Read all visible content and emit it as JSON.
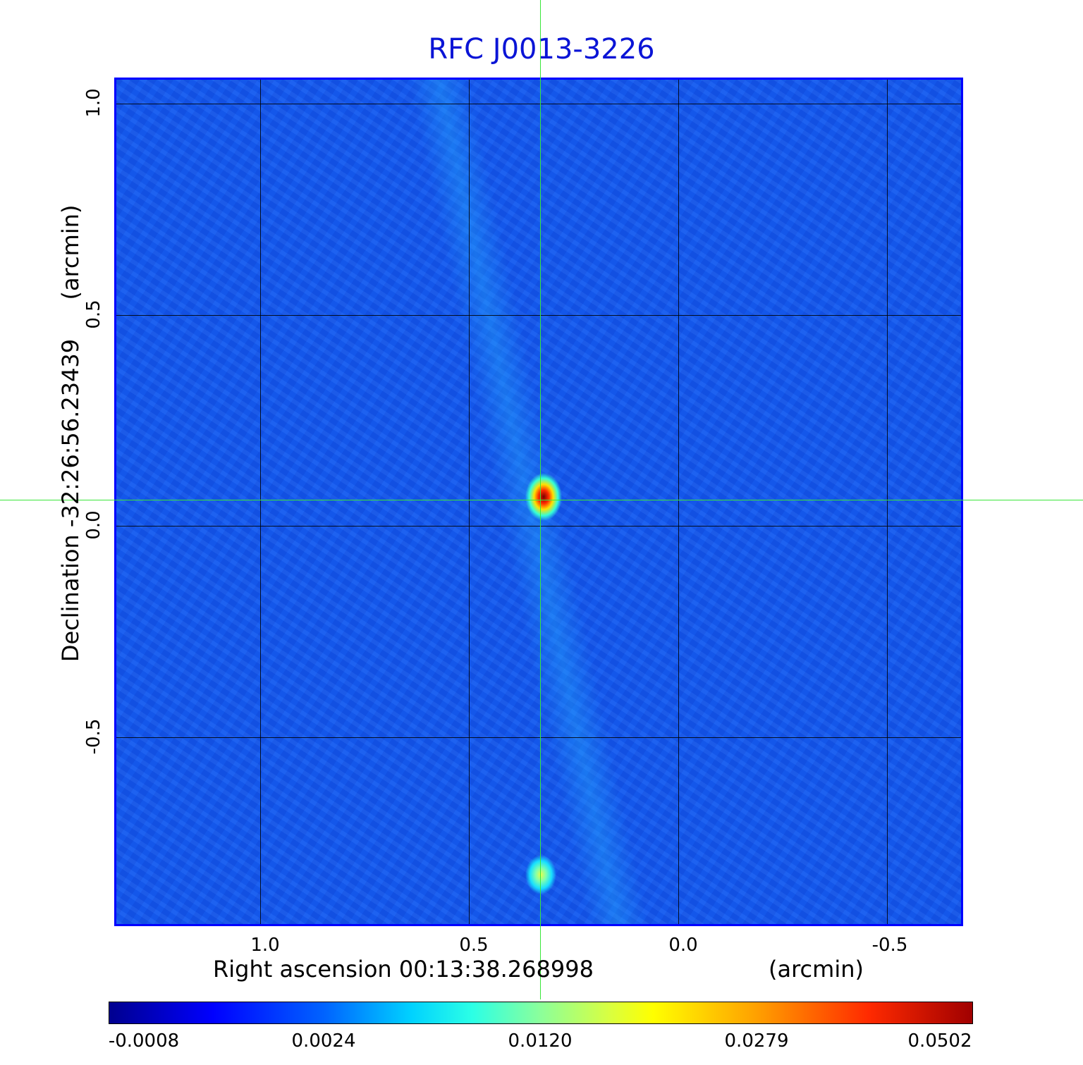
{
  "title": "RFC J0013-3226",
  "axes": {
    "x_label": "Right ascension  00:13:38.268998",
    "x_unit": "(arcmin)",
    "y_label": "Declination  -32:26:56.23439",
    "y_unit": "(arcmin)",
    "x_ticks": [
      "1.0",
      "0.5",
      "0.0",
      "-0.5"
    ],
    "y_ticks": [
      "1.0",
      "0.5",
      "0.0",
      "-0.5"
    ]
  },
  "colorbar": {
    "ticks": [
      "-0.0008",
      "0.0024",
      "0.0120",
      "0.0279",
      "0.0502"
    ]
  },
  "colors": {
    "title": "#0a14d6",
    "crosshair": "#39e639",
    "background_map": "#1458ef",
    "frame": "#0000ff"
  }
}
